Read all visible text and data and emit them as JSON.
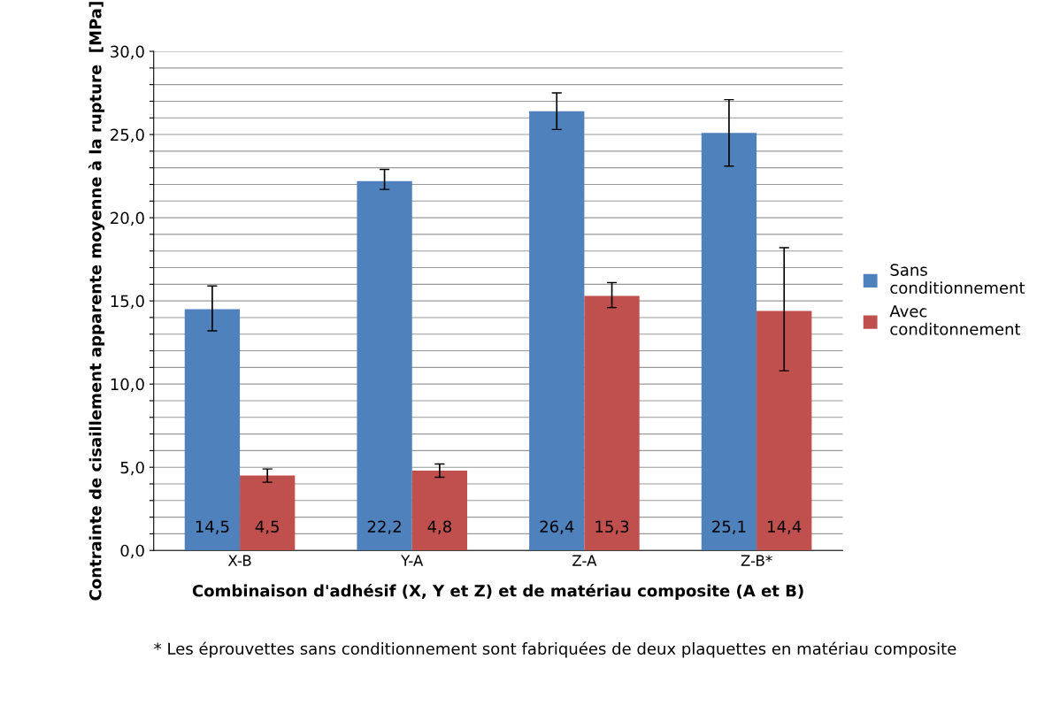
{
  "chart_data": {
    "type": "bar",
    "xlabel": "Combinaison d'adhésif (X, Y et Z) et de matériau composite (A et B)",
    "ylabel": "Contrainte de cisaillement apparente moyenne à la rupture  [MPa]",
    "categories": [
      "X-B",
      "Y-A",
      "Z-A",
      "Z-B*"
    ],
    "series": [
      {
        "name": "Sans conditionnement",
        "color": "#4f81bd",
        "values": [
          14.5,
          22.2,
          26.4,
          25.1
        ],
        "value_labels": [
          "14,5",
          "22,2",
          "26,4",
          "25,1"
        ],
        "errors": [
          [
            13.2,
            15.9
          ],
          [
            21.7,
            22.9
          ],
          [
            25.3,
            27.5
          ],
          [
            23.1,
            27.1
          ]
        ]
      },
      {
        "name": "Avec conditonnement",
        "color": "#c0504d",
        "values": [
          4.5,
          4.8,
          15.3,
          14.4
        ],
        "value_labels": [
          "4,5",
          "4,8",
          "15,3",
          "14,4"
        ],
        "errors": [
          [
            4.1,
            4.9
          ],
          [
            4.4,
            5.2
          ],
          [
            14.6,
            16.1
          ],
          [
            10.8,
            18.2
          ]
        ]
      }
    ],
    "ylim": [
      0,
      30
    ],
    "yticks": [
      {
        "value": 0,
        "label": "0,0"
      },
      {
        "value": 1,
        "label": null
      },
      {
        "value": 2,
        "label": null
      },
      {
        "value": 3,
        "label": null
      },
      {
        "value": 4,
        "label": null
      },
      {
        "value": 5,
        "label": "5,0"
      },
      {
        "value": 6,
        "label": null
      },
      {
        "value": 7,
        "label": null
      },
      {
        "value": 8,
        "label": null
      },
      {
        "value": 9,
        "label": null
      },
      {
        "value": 10,
        "label": "10,0"
      },
      {
        "value": 11,
        "label": null
      },
      {
        "value": 12,
        "label": null
      },
      {
        "value": 13,
        "label": null
      },
      {
        "value": 14,
        "label": null
      },
      {
        "value": 15,
        "label": "15,0"
      },
      {
        "value": 16,
        "label": null
      },
      {
        "value": 17,
        "label": null
      },
      {
        "value": 18,
        "label": null
      },
      {
        "value": 19,
        "label": null
      },
      {
        "value": 20,
        "label": "20,0"
      },
      {
        "value": 21,
        "label": null
      },
      {
        "value": 22,
        "label": null
      },
      {
        "value": 23,
        "label": null
      },
      {
        "value": 24,
        "label": null
      },
      {
        "value": 25,
        "label": "25,0"
      },
      {
        "value": 26,
        "label": null
      },
      {
        "value": 27,
        "label": null
      },
      {
        "value": 28,
        "label": null
      },
      {
        "value": 29,
        "label": null
      },
      {
        "value": 30,
        "label": "30,0"
      }
    ],
    "grid": "y",
    "legend": "right",
    "annotations": [
      "* Les éprouvettes sans conditionnement sont fabriquées de deux plaquettes en matériau composite"
    ]
  }
}
